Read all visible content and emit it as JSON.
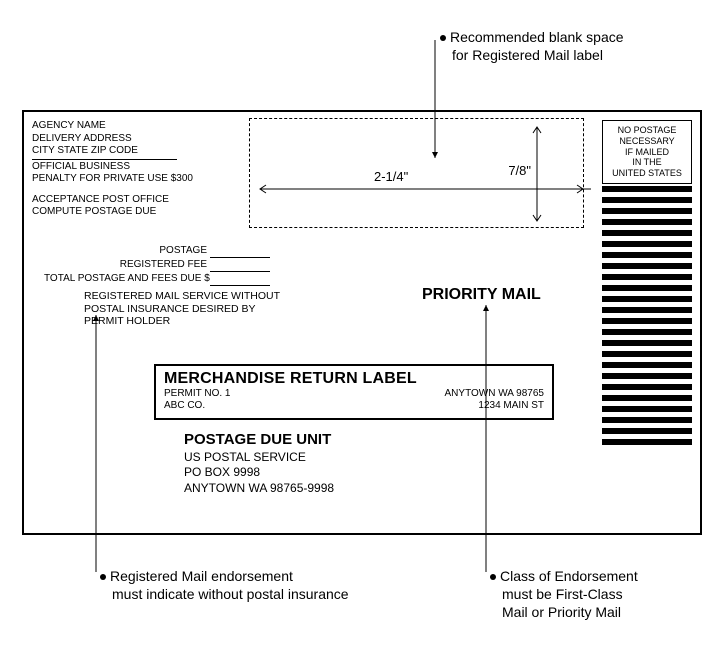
{
  "callouts": {
    "top": {
      "line1": "Recommended blank space",
      "line2": "for Registered Mail label"
    },
    "bottomLeft": {
      "line1": "Registered Mail endorsement",
      "line2": "must indicate without postal insurance"
    },
    "bottomRight": {
      "line1": "Class of Endorsement",
      "line2": "must be First-Class",
      "line3": "Mail or Priority Mail"
    }
  },
  "returnAddress": {
    "line1": "AGENCY NAME",
    "line2": "DELIVERY ADDRESS",
    "line3": "CITY STATE ZIP CODE",
    "line4": "OFFICIAL BUSINESS",
    "line5": "PENALTY FOR PRIVATE USE $300",
    "line6": "ACCEPTANCE POST OFFICE",
    "line7": "COMPUTE POSTAGE DUE"
  },
  "dimensions": {
    "height": "7/8\"",
    "width": "2-1/4\""
  },
  "indicia": {
    "line1": "NO POSTAGE",
    "line2": "NECESSARY",
    "line3": "IF MAILED",
    "line4": "IN THE",
    "line5": "UNITED STATES"
  },
  "fees": {
    "postage": "POSTAGE",
    "registered": "REGISTERED FEE",
    "total": "TOTAL POSTAGE AND FEES DUE $"
  },
  "regNote": {
    "line1": "REGISTERED MAIL SERVICE WITHOUT",
    "line2": "POSTAL INSURANCE DESIRED BY",
    "line3": "PERMIT HOLDER"
  },
  "priority": "PRIORITY MAIL",
  "mrl": {
    "title": "MERCHANDISE RETURN LABEL",
    "permit": "PERMIT NO. 1",
    "company": "ABC CO.",
    "cityzip": "ANYTOWN WA 98765",
    "street": "1234 MAIN ST"
  },
  "pdu": {
    "title": "POSTAGE DUE UNIT",
    "line1": "US POSTAL SERVICE",
    "line2": "PO BOX 9998",
    "line3": "ANYTOWN WA 98765-9998"
  },
  "style": {
    "barCount": 24
  }
}
